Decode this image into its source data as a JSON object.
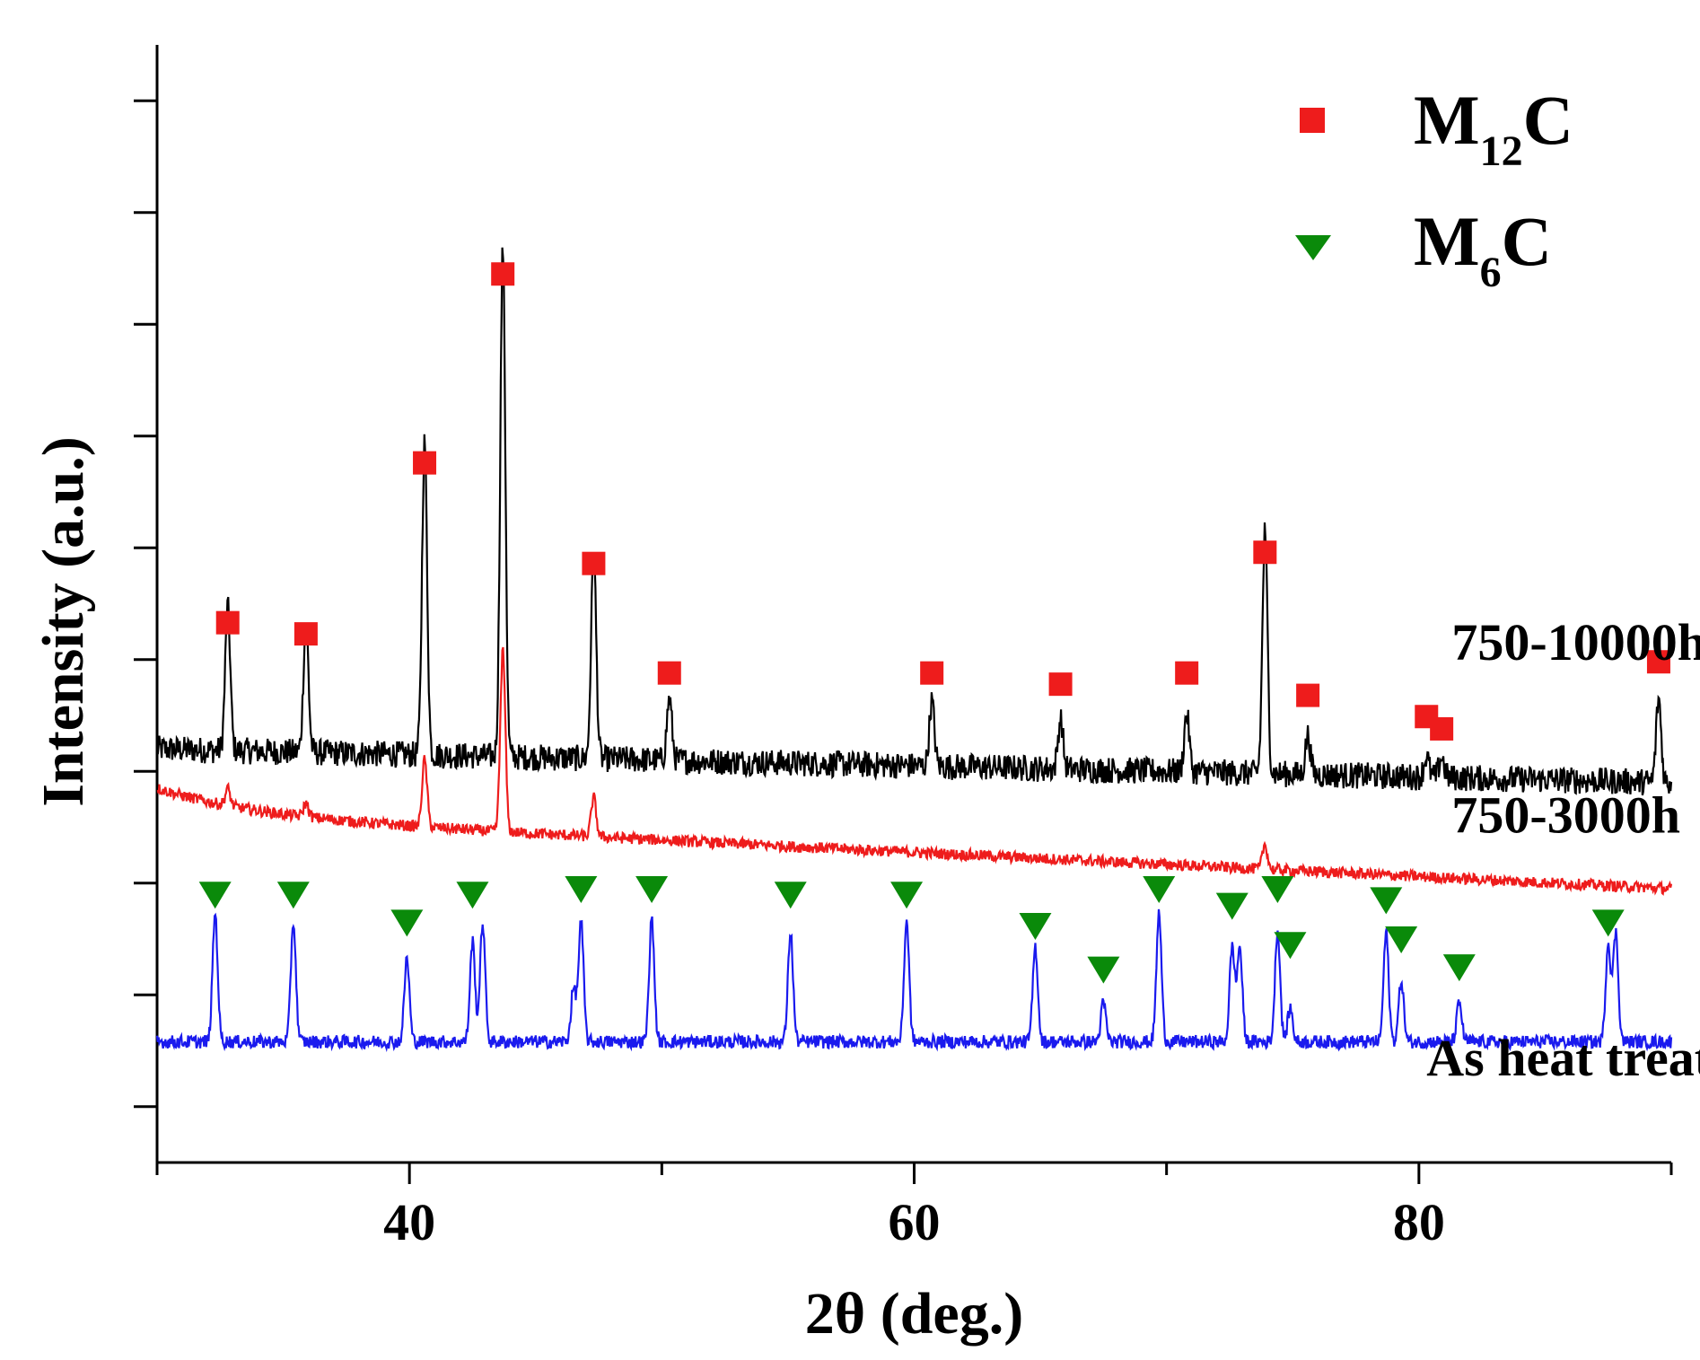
{
  "chart_data": {
    "type": "line",
    "title": "",
    "xlabel": "2θ (deg.)",
    "ylabel": "Intensity (a.u.)",
    "xlim": [
      30,
      90
    ],
    "ylim": [
      0,
      10
    ],
    "x_ticks": [
      40,
      60,
      80
    ],
    "x_tick_labels": [
      "40",
      "60",
      "80"
    ],
    "y_ticks": [
      0.5,
      1.5,
      2.5,
      3.5,
      4.5,
      5.5,
      6.5,
      7.5,
      8.5,
      9.5
    ],
    "grid": false,
    "legend": {
      "placement": "top-right",
      "entries": [
        {
          "marker": "square",
          "color": "#ee1c1c",
          "base": "M",
          "sub": "12",
          "suffix": "C"
        },
        {
          "marker": "triangle-down",
          "color": "#0a8a0a",
          "base": "M",
          "sub": "6",
          "suffix": "C"
        }
      ]
    },
    "series": [
      {
        "name": "750-10000h",
        "color": "#000000",
        "baseline_start": 3.7,
        "baseline_end": 3.4,
        "noise": 0.12,
        "peaks": [
          {
            "x": 32.8,
            "h": 1.28,
            "label_y": 4.83
          },
          {
            "x": 35.9,
            "h": 1.17,
            "label_y": 4.73
          },
          {
            "x": 40.6,
            "h": 2.8,
            "label_y": 6.26
          },
          {
            "x": 43.7,
            "h": 4.55,
            "label_y": 7.95
          },
          {
            "x": 47.3,
            "h": 1.85,
            "label_y": 5.36
          },
          {
            "x": 50.3,
            "h": 0.55,
            "label_y": 4.38
          },
          {
            "x": 60.7,
            "h": 0.58,
            "label_y": 4.38
          },
          {
            "x": 65.8,
            "h": 0.45,
            "label_y": 4.28
          },
          {
            "x": 70.8,
            "h": 0.52,
            "label_y": 4.38
          },
          {
            "x": 73.9,
            "h": 2.17,
            "label_y": 5.46
          },
          {
            "x": 75.6,
            "h": 0.35,
            "label_y": 4.18
          },
          {
            "x": 80.3,
            "h": 0.18,
            "label_y": 3.99
          },
          {
            "x": 80.9,
            "h": 0.18,
            "label_y": 3.88
          },
          {
            "x": 89.5,
            "h": 0.75,
            "label_y": 4.48
          }
        ]
      },
      {
        "name": "750-3000h",
        "color": "#ee1c1c",
        "baseline_start": 3.1,
        "baseline_end": 2.45,
        "decay": 0.25,
        "noise": 0.05,
        "peaks": [
          {
            "x": 32.8,
            "h": 0.15
          },
          {
            "x": 35.9,
            "h": 0.12
          },
          {
            "x": 40.6,
            "h": 0.6
          },
          {
            "x": 43.7,
            "h": 1.62
          },
          {
            "x": 47.3,
            "h": 0.35
          },
          {
            "x": 73.9,
            "h": 0.22
          }
        ]
      },
      {
        "name": "As heat treated",
        "color": "#1a1aee",
        "baseline_start": 1.08,
        "baseline_end": 1.08,
        "noise": 0.06,
        "peaks": [
          {
            "x": 32.3,
            "h": 1.15,
            "label_y": 2.4
          },
          {
            "x": 35.4,
            "h": 1.07,
            "label_y": 2.4
          },
          {
            "x": 39.9,
            "h": 0.75,
            "label_y": 2.15
          },
          {
            "x": 42.5,
            "h": 0.9,
            "label_y": 2.4
          },
          {
            "x": 42.9,
            "h": 1.07
          },
          {
            "x": 46.5,
            "h": 0.47
          },
          {
            "x": 46.8,
            "h": 1.07,
            "label_y": 2.45
          },
          {
            "x": 49.6,
            "h": 1.1,
            "label_y": 2.45
          },
          {
            "x": 55.1,
            "h": 0.98,
            "label_y": 2.4
          },
          {
            "x": 59.7,
            "h": 1.08,
            "label_y": 2.4
          },
          {
            "x": 64.8,
            "h": 0.85,
            "label_y": 2.12
          },
          {
            "x": 67.5,
            "h": 0.35,
            "label_y": 1.73
          },
          {
            "x": 69.7,
            "h": 1.15,
            "label_y": 2.45
          },
          {
            "x": 72.6,
            "h": 0.85,
            "label_y": 2.3
          },
          {
            "x": 72.9,
            "h": 0.85
          },
          {
            "x": 74.4,
            "h": 1.0,
            "label_y": 2.45
          },
          {
            "x": 74.9,
            "h": 0.3,
            "label_y": 1.95
          },
          {
            "x": 78.7,
            "h": 0.98,
            "label_y": 2.35
          },
          {
            "x": 79.3,
            "h": 0.55,
            "label_y": 2.0
          },
          {
            "x": 81.6,
            "h": 0.35,
            "label_y": 1.75
          },
          {
            "x": 87.5,
            "h": 0.88,
            "label_y": 2.15
          },
          {
            "x": 87.8,
            "h": 0.97
          }
        ]
      }
    ],
    "trace_labels": [
      {
        "text": "750-10000h",
        "x": 81.3,
        "y": 4.5
      },
      {
        "text": "750-3000h",
        "x": 81.3,
        "y": 2.95
      },
      {
        "text": "As heat treated",
        "x": 80.3,
        "y": 0.78
      }
    ]
  }
}
